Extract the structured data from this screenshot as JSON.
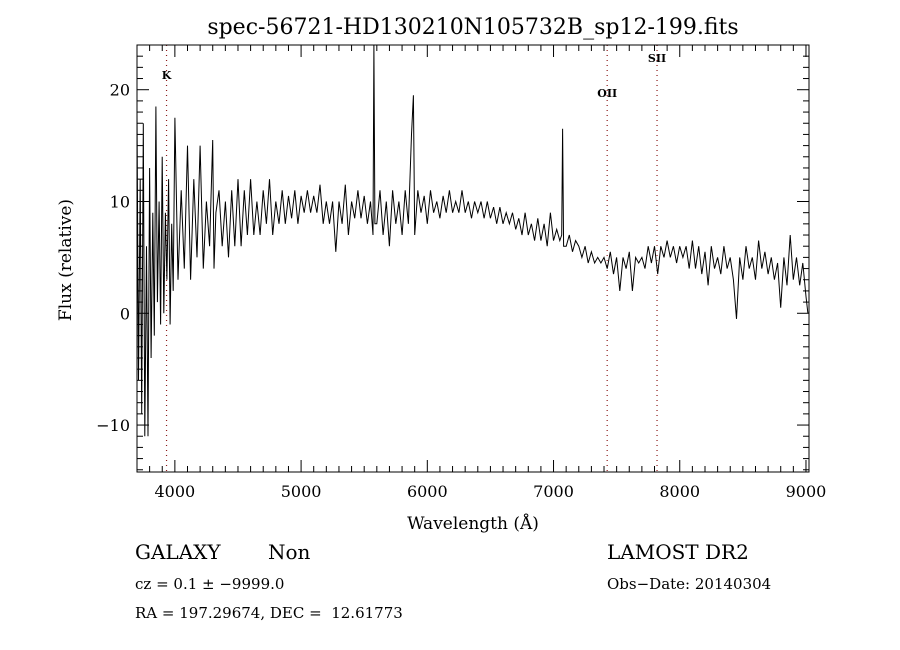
{
  "chart_data": {
    "type": "line",
    "title": "spec-56721-HD130210N105732B_sp12-199.fits",
    "xlabel": "Wavelength (Å)",
    "ylabel": "Flux (relative)",
    "xlim": [
      3700,
      9024
    ],
    "ylim": [
      -14.2,
      24.0
    ],
    "xticks": [
      4000,
      5000,
      6000,
      7000,
      8000,
      9000
    ],
    "xtick_labels": [
      "4000",
      "5000",
      "6000",
      "7000",
      "8000",
      "9000"
    ],
    "yticks": [
      -10,
      0,
      10,
      20
    ],
    "ytick_labels": [
      "−10",
      "0",
      "10",
      "20"
    ],
    "grid": false,
    "line_color": "#000000",
    "marker_color": "#8b1a1a",
    "line_markers": [
      {
        "label": "K",
        "x": 3934
      },
      {
        "label": "OII",
        "x": 7425
      },
      {
        "label": "SII",
        "x": 7820
      }
    ],
    "series": [
      {
        "name": "flux",
        "points": [
          [
            3700,
            18
          ],
          [
            3712,
            -6
          ],
          [
            3725,
            12
          ],
          [
            3737,
            -9
          ],
          [
            3750,
            17
          ],
          [
            3762,
            -11
          ],
          [
            3775,
            6
          ],
          [
            3787,
            -11
          ],
          [
            3800,
            13
          ],
          [
            3812,
            -4
          ],
          [
            3825,
            9
          ],
          [
            3837,
            -2
          ],
          [
            3850,
            18.5
          ],
          [
            3862,
            1
          ],
          [
            3875,
            10
          ],
          [
            3887,
            -1
          ],
          [
            3900,
            14
          ],
          [
            3912,
            0
          ],
          [
            3925,
            9
          ],
          [
            3937,
            3
          ],
          [
            3950,
            12
          ],
          [
            3962,
            -1
          ],
          [
            3975,
            8
          ],
          [
            3987,
            2
          ],
          [
            4000,
            17.5
          ],
          [
            4025,
            3
          ],
          [
            4050,
            11
          ],
          [
            4075,
            4
          ],
          [
            4100,
            15
          ],
          [
            4125,
            3
          ],
          [
            4150,
            12
          ],
          [
            4175,
            5
          ],
          [
            4200,
            15
          ],
          [
            4225,
            4
          ],
          [
            4250,
            10
          ],
          [
            4275,
            6
          ],
          [
            4300,
            15.5
          ],
          [
            4310,
            4
          ],
          [
            4325,
            9
          ],
          [
            4350,
            11
          ],
          [
            4375,
            6
          ],
          [
            4400,
            10
          ],
          [
            4425,
            5
          ],
          [
            4450,
            11
          ],
          [
            4475,
            6
          ],
          [
            4500,
            12
          ],
          [
            4525,
            6
          ],
          [
            4550,
            11
          ],
          [
            4575,
            7
          ],
          [
            4600,
            12
          ],
          [
            4625,
            7
          ],
          [
            4650,
            10
          ],
          [
            4675,
            7
          ],
          [
            4700,
            11
          ],
          [
            4725,
            8
          ],
          [
            4750,
            12
          ],
          [
            4775,
            7
          ],
          [
            4800,
            10
          ],
          [
            4825,
            8
          ],
          [
            4850,
            11
          ],
          [
            4875,
            8
          ],
          [
            4900,
            10.5
          ],
          [
            4925,
            8.5
          ],
          [
            4950,
            11
          ],
          [
            4975,
            8
          ],
          [
            5000,
            10.5
          ],
          [
            5025,
            9
          ],
          [
            5050,
            11
          ],
          [
            5075,
            9
          ],
          [
            5100,
            10.5
          ],
          [
            5125,
            9
          ],
          [
            5150,
            11.5
          ],
          [
            5175,
            8
          ],
          [
            5200,
            10
          ],
          [
            5225,
            8
          ],
          [
            5250,
            10
          ],
          [
            5275,
            5.5
          ],
          [
            5300,
            10
          ],
          [
            5325,
            8
          ],
          [
            5350,
            11.5
          ],
          [
            5375,
            7
          ],
          [
            5400,
            10
          ],
          [
            5425,
            8.5
          ],
          [
            5450,
            11
          ],
          [
            5475,
            8.5
          ],
          [
            5500,
            10.5
          ],
          [
            5525,
            8
          ],
          [
            5550,
            10
          ],
          [
            5570,
            7
          ],
          [
            5577,
            24
          ],
          [
            5585,
            8
          ],
          [
            5600,
            8
          ],
          [
            5625,
            11
          ],
          [
            5650,
            7
          ],
          [
            5675,
            10
          ],
          [
            5700,
            6
          ],
          [
            5725,
            11
          ],
          [
            5750,
            8
          ],
          [
            5775,
            10
          ],
          [
            5800,
            7
          ],
          [
            5825,
            11
          ],
          [
            5850,
            8
          ],
          [
            5875,
            16
          ],
          [
            5890,
            19.5
          ],
          [
            5900,
            7
          ],
          [
            5925,
            11
          ],
          [
            5950,
            9
          ],
          [
            5975,
            10.5
          ],
          [
            6000,
            8
          ],
          [
            6025,
            11
          ],
          [
            6050,
            9
          ],
          [
            6075,
            10
          ],
          [
            6100,
            8.5
          ],
          [
            6125,
            10.5
          ],
          [
            6150,
            9
          ],
          [
            6175,
            11
          ],
          [
            6200,
            9
          ],
          [
            6225,
            10
          ],
          [
            6250,
            9
          ],
          [
            6275,
            11
          ],
          [
            6300,
            9
          ],
          [
            6325,
            10
          ],
          [
            6350,
            8.5
          ],
          [
            6375,
            10
          ],
          [
            6400,
            9
          ],
          [
            6425,
            10
          ],
          [
            6450,
            8.5
          ],
          [
            6475,
            10
          ],
          [
            6500,
            8.5
          ],
          [
            6525,
            9.5
          ],
          [
            6550,
            8
          ],
          [
            6575,
            9.5
          ],
          [
            6600,
            8
          ],
          [
            6625,
            9
          ],
          [
            6650,
            8
          ],
          [
            6675,
            9
          ],
          [
            6700,
            7.5
          ],
          [
            6725,
            8.5
          ],
          [
            6750,
            7
          ],
          [
            6775,
            9
          ],
          [
            6800,
            7
          ],
          [
            6825,
            8
          ],
          [
            6850,
            6.5
          ],
          [
            6875,
            8.5
          ],
          [
            6900,
            6.5
          ],
          [
            6925,
            8
          ],
          [
            6950,
            6
          ],
          [
            6975,
            9
          ],
          [
            7000,
            6.5
          ],
          [
            7025,
            7.5
          ],
          [
            7050,
            6.5
          ],
          [
            7065,
            7
          ],
          [
            7072,
            16.5
          ],
          [
            7080,
            6
          ],
          [
            7100,
            6
          ],
          [
            7125,
            7
          ],
          [
            7150,
            5.5
          ],
          [
            7175,
            6.5
          ],
          [
            7200,
            6
          ],
          [
            7225,
            5
          ],
          [
            7250,
            6
          ],
          [
            7275,
            4.5
          ],
          [
            7300,
            5.5
          ],
          [
            7325,
            4.5
          ],
          [
            7350,
            5
          ],
          [
            7375,
            4.5
          ],
          [
            7400,
            5
          ],
          [
            7425,
            4
          ],
          [
            7450,
            5.5
          ],
          [
            7475,
            3.5
          ],
          [
            7500,
            5
          ],
          [
            7525,
            2
          ],
          [
            7550,
            5
          ],
          [
            7575,
            4
          ],
          [
            7600,
            5.5
          ],
          [
            7625,
            2
          ],
          [
            7650,
            5
          ],
          [
            7675,
            4.5
          ],
          [
            7700,
            5
          ],
          [
            7725,
            4
          ],
          [
            7750,
            6
          ],
          [
            7775,
            4.5
          ],
          [
            7800,
            6
          ],
          [
            7825,
            3.5
          ],
          [
            7850,
            6
          ],
          [
            7875,
            5
          ],
          [
            7900,
            6.5
          ],
          [
            7925,
            5
          ],
          [
            7950,
            6
          ],
          [
            7975,
            4.5
          ],
          [
            8000,
            6
          ],
          [
            8025,
            5
          ],
          [
            8050,
            6
          ],
          [
            8075,
            4
          ],
          [
            8100,
            6.5
          ],
          [
            8125,
            4
          ],
          [
            8150,
            6
          ],
          [
            8175,
            3.5
          ],
          [
            8200,
            5.5
          ],
          [
            8225,
            2.5
          ],
          [
            8250,
            6
          ],
          [
            8275,
            4
          ],
          [
            8300,
            5
          ],
          [
            8325,
            3.5
          ],
          [
            8350,
            6
          ],
          [
            8375,
            4
          ],
          [
            8400,
            5
          ],
          [
            8425,
            3
          ],
          [
            8450,
            -0.5
          ],
          [
            8475,
            5
          ],
          [
            8500,
            3
          ],
          [
            8525,
            6
          ],
          [
            8550,
            4
          ],
          [
            8575,
            5
          ],
          [
            8600,
            3
          ],
          [
            8625,
            6.5
          ],
          [
            8650,
            4
          ],
          [
            8675,
            5.5
          ],
          [
            8700,
            3.5
          ],
          [
            8725,
            5
          ],
          [
            8750,
            3
          ],
          [
            8775,
            4.5
          ],
          [
            8800,
            0.5
          ],
          [
            8825,
            5
          ],
          [
            8850,
            2.5
          ],
          [
            8875,
            7
          ],
          [
            8900,
            3
          ],
          [
            8925,
            5
          ],
          [
            8950,
            2.5
          ],
          [
            8975,
            4.5
          ],
          [
            9000,
            1.5
          ],
          [
            9015,
            0
          ]
        ]
      }
    ]
  },
  "info": {
    "class": "GALAXY",
    "subclass": "Non",
    "survey": "LAMOST DR2",
    "cz": "cz = 0.1 ± −9999.0",
    "obs_date": "Obs−Date: 20140304",
    "coords": "RA = 197.29674, DEC =  12.61773"
  }
}
